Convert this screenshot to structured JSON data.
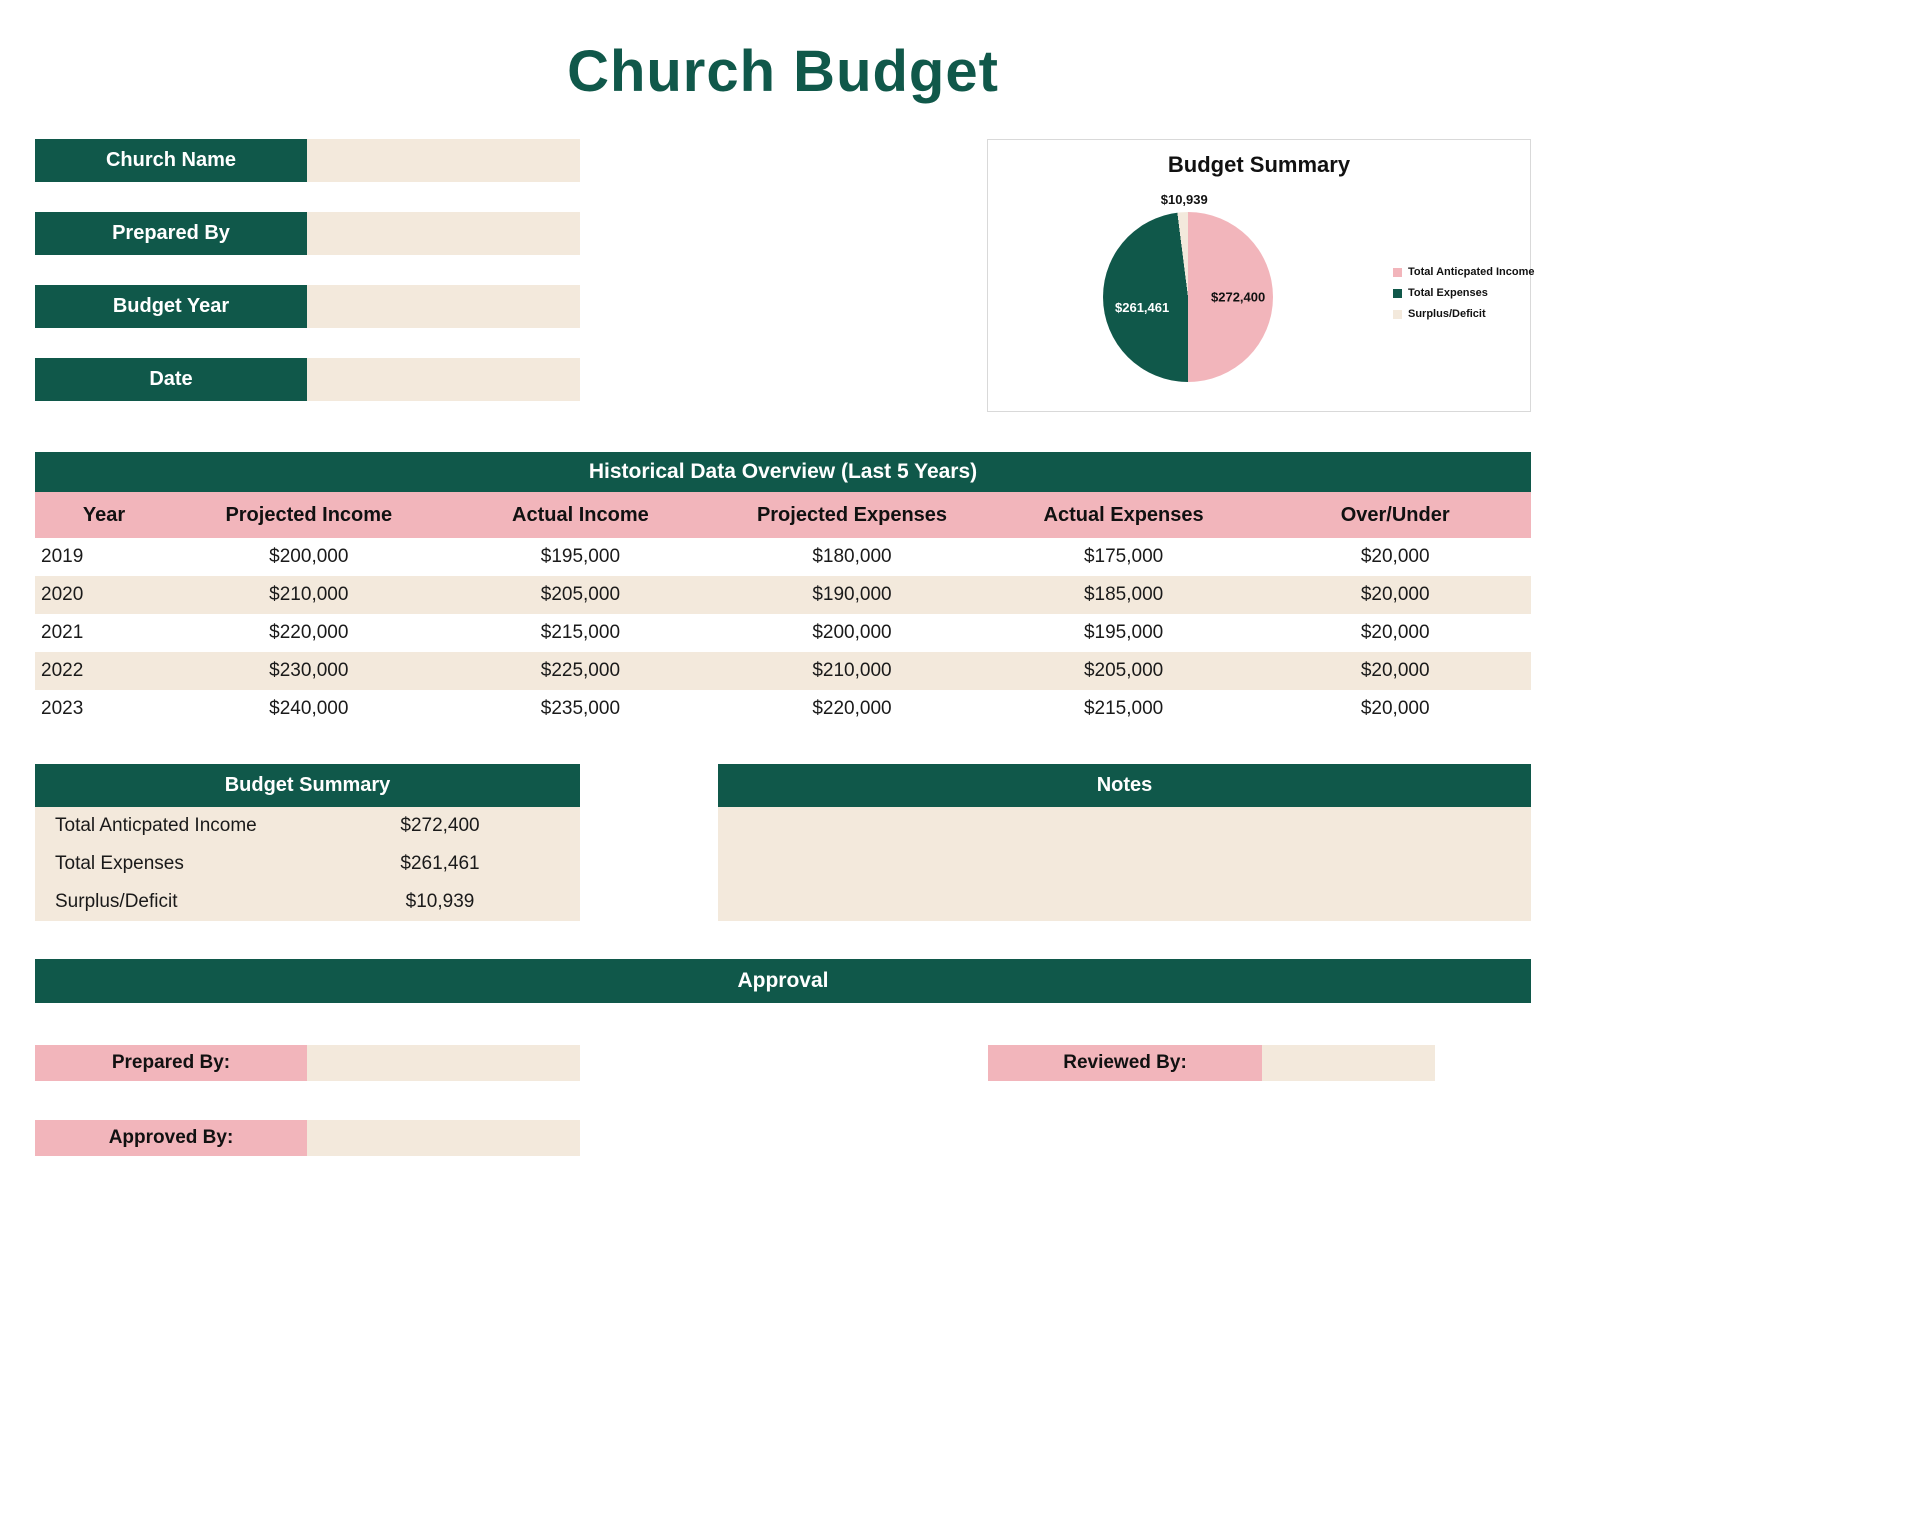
{
  "page_title": "Church Budget",
  "colors": {
    "green": "#10584a",
    "pink": "#f2b5bb",
    "cream": "#f3e9dc"
  },
  "form": {
    "fields": [
      {
        "label": "Church Name",
        "value": ""
      },
      {
        "label": "Prepared By",
        "value": ""
      },
      {
        "label": "Budget Year",
        "value": ""
      },
      {
        "label": "Date",
        "value": ""
      }
    ]
  },
  "chart_data": {
    "type": "pie",
    "title": "Budget Summary",
    "legend_position": "right",
    "slices": [
      {
        "label": "Total Anticpated Income",
        "value": 272400,
        "display": "$272,400",
        "color": "#f2b5bb"
      },
      {
        "label": "Total Expenses",
        "value": 261461,
        "display": "$261,461",
        "color": "#10584a"
      },
      {
        "label": "Surplus/Deficit",
        "value": 10939,
        "display": "$10,939",
        "color": "#f3e9dc"
      }
    ]
  },
  "historical": {
    "title": "Historical Data Overview (Last 5 Years)",
    "columns": [
      "Year",
      "Projected Income",
      "Actual Income",
      "Projected Expenses",
      "Actual Expenses",
      "Over/Under"
    ],
    "rows": [
      [
        "2019",
        "$200,000",
        "$195,000",
        "$180,000",
        "$175,000",
        "$20,000"
      ],
      [
        "2020",
        "$210,000",
        "$205,000",
        "$190,000",
        "$185,000",
        "$20,000"
      ],
      [
        "2021",
        "$220,000",
        "$215,000",
        "$200,000",
        "$195,000",
        "$20,000"
      ],
      [
        "2022",
        "$230,000",
        "$225,000",
        "$210,000",
        "$205,000",
        "$20,000"
      ],
      [
        "2023",
        "$240,000",
        "$235,000",
        "$220,000",
        "$215,000",
        "$20,000"
      ]
    ]
  },
  "budget_summary": {
    "title": "Budget Summary",
    "rows": [
      {
        "label": "Total Anticpated Income",
        "value": "$272,400"
      },
      {
        "label": "Total Expenses",
        "value": "$261,461"
      },
      {
        "label": "Surplus/Deficit",
        "value": "$10,939"
      }
    ]
  },
  "notes": {
    "title": "Notes",
    "content": ""
  },
  "approval": {
    "title": "Approval",
    "fields": [
      {
        "label": "Prepared By:",
        "value": ""
      },
      {
        "label": "Reviewed By:",
        "value": ""
      },
      {
        "label": "Approved By:",
        "value": ""
      }
    ]
  }
}
